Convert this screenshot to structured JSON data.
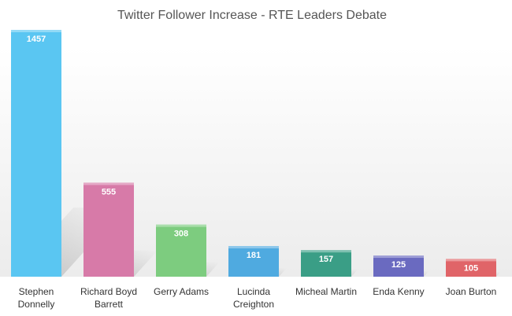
{
  "chart_data": {
    "type": "bar",
    "title": "Twitter Follower Increase - RTE Leaders Debate",
    "categories": [
      [
        "Stephen",
        "Donnelly"
      ],
      [
        "Richard Boyd",
        "Barrett"
      ],
      [
        "Gerry Adams"
      ],
      [
        "Lucinda",
        "Creighton"
      ],
      [
        "Micheal Martin"
      ],
      [
        "Enda Kenny"
      ],
      [
        "Joan Burton"
      ]
    ],
    "values": [
      1457,
      555,
      308,
      181,
      157,
      125,
      105
    ],
    "data_labels": [
      "1457",
      "555",
      "308",
      "181",
      "157",
      "125",
      "105"
    ],
    "colors": [
      "#5ac6f2",
      "#d77aa8",
      "#7dcc7f",
      "#4faae0",
      "#3a9e86",
      "#6a6ac0",
      "#e06468"
    ],
    "ylim": [
      0,
      1457
    ],
    "grid": false,
    "legend": "none"
  }
}
